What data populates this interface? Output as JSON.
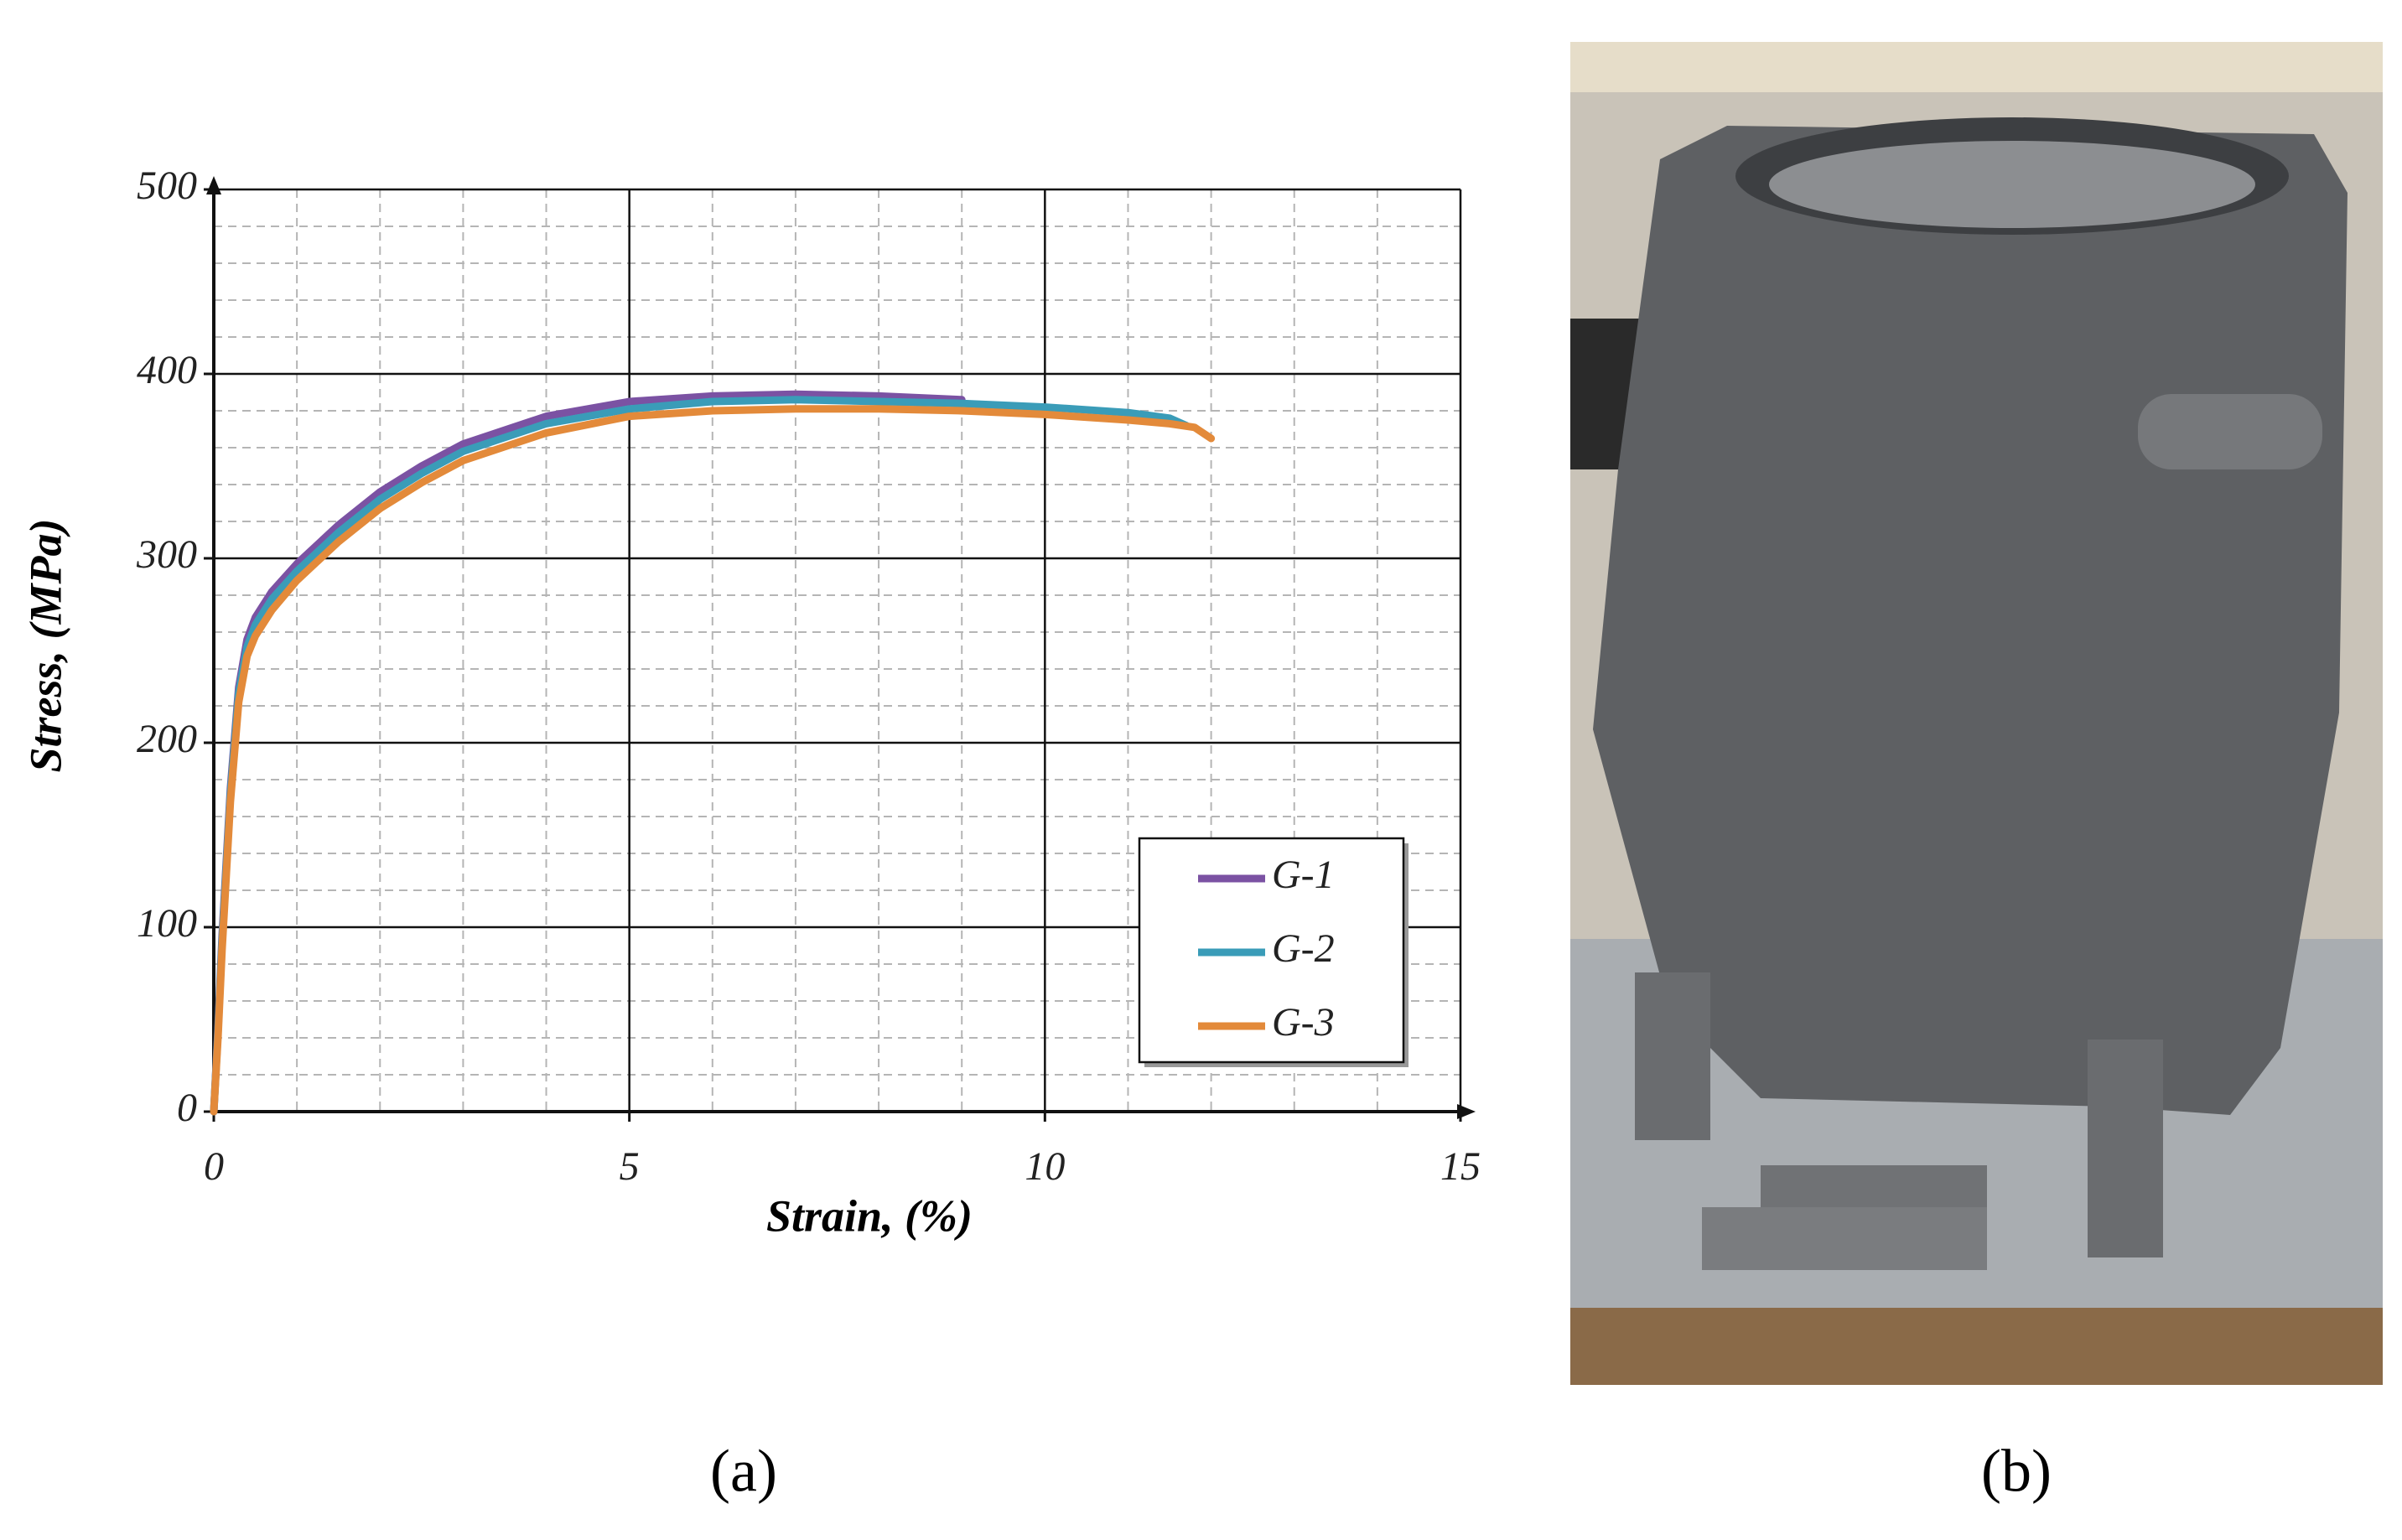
{
  "chart_data": {
    "type": "line",
    "x_label": "Strain, (%)",
    "y_label": "Stress, (MPa)",
    "xlim": [
      0,
      15
    ],
    "ylim": [
      0,
      500
    ],
    "xticks": [
      0,
      5,
      10,
      15
    ],
    "yticks": [
      0,
      100,
      200,
      300,
      400,
      500
    ],
    "grid": true,
    "minor_grid": true,
    "legend": "lower right",
    "series": [
      {
        "name": "G-1",
        "color": "#7b52a3",
        "x": [
          0,
          0.05,
          0.1,
          0.2,
          0.3,
          0.4,
          0.5,
          0.7,
          1,
          1.5,
          2,
          2.5,
          3,
          4,
          5,
          6,
          7,
          8,
          9
        ],
        "values": [
          0,
          45,
          95,
          175,
          230,
          256,
          268,
          282,
          297,
          318,
          336,
          350,
          362,
          377,
          385,
          388,
          389,
          388,
          386
        ]
      },
      {
        "name": "G-2",
        "color": "#3a9cb8",
        "x": [
          0,
          0.05,
          0.1,
          0.2,
          0.3,
          0.4,
          0.5,
          0.7,
          1,
          1.5,
          2,
          2.5,
          3,
          4,
          5,
          6,
          7,
          8,
          9,
          10,
          11,
          11.5,
          11.7
        ],
        "values": [
          0,
          43,
          92,
          172,
          227,
          252,
          264,
          278,
          293,
          314,
          332,
          346,
          358,
          373,
          381,
          385,
          386,
          385,
          384,
          382,
          379,
          376,
          372
        ]
      },
      {
        "name": "G-3",
        "color": "#e38a3a",
        "x": [
          0,
          0.05,
          0.1,
          0.2,
          0.3,
          0.4,
          0.5,
          0.7,
          1,
          1.5,
          2,
          2.5,
          3,
          4,
          5,
          6,
          7,
          8,
          9,
          10,
          11,
          11.5,
          11.8,
          12
        ],
        "values": [
          0,
          40,
          88,
          168,
          222,
          247,
          258,
          272,
          288,
          309,
          327,
          341,
          353,
          368,
          377,
          380,
          381,
          381,
          380,
          378,
          375,
          373,
          371,
          365
        ]
      }
    ]
  },
  "panel_labels": {
    "a": "(a)",
    "b": "(b)"
  }
}
